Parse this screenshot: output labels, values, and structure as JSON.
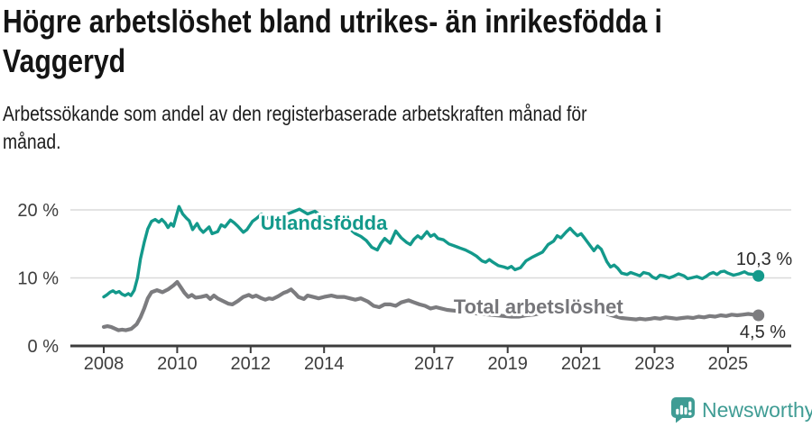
{
  "header": {
    "title": "Högre arbetslöshet bland utrikes- än inrikesfödda i\nVaggeryd",
    "subtitle": "Arbetssökande som andel av den registerbaserade arbetskraften månad för\nmånad."
  },
  "footer": {
    "brand": "Newsworthy"
  },
  "colors": {
    "series_foreign": "#13998B",
    "series_foreign_label": "#13998B",
    "series_total": "#7C7C7F",
    "series_total_label": "#76767A",
    "grid": "#DADADA",
    "axis": "#3C3C3C",
    "tick_text": "#3D3D3D",
    "value_text": "#2B2B2B",
    "brand": "#3F9C94"
  },
  "chart_data": {
    "type": "line",
    "title": "Högre arbetslöshet bland utrikes- än inrikesfödda i Vaggeryd",
    "subtitle": "Arbetssökande som andel av den registerbaserade arbetskraften månad för månad.",
    "xlabel": "",
    "ylabel": "",
    "grid": "horizontal",
    "legend_position": "inline-labels",
    "x_range": [
      2007.1,
      2026.7
    ],
    "ylim": [
      0,
      22
    ],
    "x_axis": {
      "ticks": [
        {
          "value": 2008,
          "label": "2008"
        },
        {
          "value": 2010,
          "label": "2010"
        },
        {
          "value": 2012,
          "label": "2012"
        },
        {
          "value": 2014,
          "label": "2014"
        },
        {
          "value": 2017,
          "label": "2017"
        },
        {
          "value": 2019,
          "label": "2019"
        },
        {
          "value": 2021,
          "label": "2021"
        },
        {
          "value": 2023,
          "label": "2023"
        },
        {
          "value": 2025,
          "label": "2025"
        }
      ]
    },
    "y_axis": {
      "ticks": [
        {
          "value": 0,
          "label": "0 %"
        },
        {
          "value": 10,
          "label": "10 %"
        },
        {
          "value": 20,
          "label": "20 %"
        }
      ]
    },
    "series": [
      {
        "id": "utlandsfodda",
        "name": "Utlandsfödda",
        "color": "#13998B",
        "end_value": 10.3,
        "end_label": "10,3 %",
        "points": [
          [
            2008.0,
            7.2
          ],
          [
            2008.08,
            7.5
          ],
          [
            2008.17,
            7.9
          ],
          [
            2008.25,
            8.1
          ],
          [
            2008.33,
            7.8
          ],
          [
            2008.42,
            8.0
          ],
          [
            2008.5,
            7.6
          ],
          [
            2008.58,
            7.4
          ],
          [
            2008.67,
            7.7
          ],
          [
            2008.74,
            7.4
          ],
          [
            2008.83,
            8.2
          ],
          [
            2008.92,
            10.0
          ],
          [
            2009.0,
            12.8
          ],
          [
            2009.1,
            15.2
          ],
          [
            2009.2,
            17.2
          ],
          [
            2009.3,
            18.3
          ],
          [
            2009.4,
            18.6
          ],
          [
            2009.5,
            18.2
          ],
          [
            2009.58,
            18.6
          ],
          [
            2009.67,
            18.1
          ],
          [
            2009.75,
            17.4
          ],
          [
            2009.83,
            18.0
          ],
          [
            2009.9,
            17.6
          ],
          [
            2009.97,
            19.0
          ],
          [
            2010.05,
            20.5
          ],
          [
            2010.15,
            19.4
          ],
          [
            2010.25,
            18.8
          ],
          [
            2010.33,
            18.4
          ],
          [
            2010.42,
            17.1
          ],
          [
            2010.54,
            18.0
          ],
          [
            2010.62,
            17.2
          ],
          [
            2010.71,
            16.7
          ],
          [
            2010.79,
            17.1
          ],
          [
            2010.87,
            17.5
          ],
          [
            2010.95,
            16.5
          ],
          [
            2011.1,
            16.8
          ],
          [
            2011.2,
            17.8
          ],
          [
            2011.3,
            17.5
          ],
          [
            2011.45,
            18.5
          ],
          [
            2011.55,
            18.1
          ],
          [
            2011.65,
            17.6
          ],
          [
            2011.8,
            16.7
          ],
          [
            2011.9,
            17.1
          ],
          [
            2012.05,
            18.3
          ],
          [
            2012.15,
            18.7
          ],
          [
            2012.3,
            19.4
          ],
          [
            2012.45,
            18.8
          ],
          [
            2012.6,
            19.1
          ],
          [
            2012.75,
            18.7
          ],
          [
            2012.9,
            19.2
          ],
          [
            2013.1,
            19.6
          ],
          [
            2013.33,
            20.1
          ],
          [
            2013.55,
            19.4
          ],
          [
            2013.75,
            19.8
          ],
          [
            2013.95,
            19.0
          ],
          [
            2014.1,
            18.7
          ],
          [
            2014.25,
            18.5
          ],
          [
            2014.4,
            18.2
          ],
          [
            2014.55,
            17.8
          ],
          [
            2014.7,
            17.2
          ],
          [
            2014.85,
            16.5
          ],
          [
            2015.0,
            16.1
          ],
          [
            2015.15,
            15.5
          ],
          [
            2015.3,
            14.5
          ],
          [
            2015.45,
            14.1
          ],
          [
            2015.55,
            15.1
          ],
          [
            2015.65,
            15.8
          ],
          [
            2015.8,
            15.1
          ],
          [
            2015.95,
            16.9
          ],
          [
            2016.1,
            15.9
          ],
          [
            2016.25,
            15.2
          ],
          [
            2016.35,
            14.9
          ],
          [
            2016.45,
            15.7
          ],
          [
            2016.55,
            16.2
          ],
          [
            2016.65,
            15.8
          ],
          [
            2016.8,
            16.8
          ],
          [
            2016.9,
            16.1
          ],
          [
            2017.0,
            16.4
          ],
          [
            2017.1,
            15.8
          ],
          [
            2017.25,
            15.6
          ],
          [
            2017.4,
            15.0
          ],
          [
            2017.55,
            14.7
          ],
          [
            2017.7,
            14.4
          ],
          [
            2017.85,
            14.1
          ],
          [
            2018.0,
            13.7
          ],
          [
            2018.15,
            13.2
          ],
          [
            2018.3,
            12.5
          ],
          [
            2018.4,
            12.3
          ],
          [
            2018.5,
            12.7
          ],
          [
            2018.6,
            12.3
          ],
          [
            2018.75,
            11.8
          ],
          [
            2018.9,
            11.6
          ],
          [
            2019.0,
            11.4
          ],
          [
            2019.1,
            11.7
          ],
          [
            2019.2,
            11.2
          ],
          [
            2019.35,
            11.5
          ],
          [
            2019.5,
            12.5
          ],
          [
            2019.65,
            13.0
          ],
          [
            2019.8,
            13.4
          ],
          [
            2019.95,
            13.8
          ],
          [
            2020.1,
            14.9
          ],
          [
            2020.25,
            15.4
          ],
          [
            2020.35,
            16.2
          ],
          [
            2020.45,
            15.9
          ],
          [
            2020.6,
            16.8
          ],
          [
            2020.7,
            17.3
          ],
          [
            2020.8,
            16.7
          ],
          [
            2020.9,
            16.2
          ],
          [
            2021.0,
            16.5
          ],
          [
            2021.1,
            15.8
          ],
          [
            2021.25,
            14.7
          ],
          [
            2021.35,
            14.0
          ],
          [
            2021.45,
            14.7
          ],
          [
            2021.55,
            14.2
          ],
          [
            2021.7,
            12.4
          ],
          [
            2021.8,
            11.6
          ],
          [
            2021.9,
            11.9
          ],
          [
            2022.0,
            11.4
          ],
          [
            2022.1,
            10.7
          ],
          [
            2022.25,
            10.5
          ],
          [
            2022.35,
            10.8
          ],
          [
            2022.5,
            10.5
          ],
          [
            2022.6,
            10.3
          ],
          [
            2022.7,
            10.8
          ],
          [
            2022.85,
            10.6
          ],
          [
            2022.95,
            10.1
          ],
          [
            2023.05,
            9.9
          ],
          [
            2023.15,
            10.4
          ],
          [
            2023.25,
            10.3
          ],
          [
            2023.4,
            10.0
          ],
          [
            2023.5,
            10.2
          ],
          [
            2023.65,
            10.6
          ],
          [
            2023.8,
            10.3
          ],
          [
            2023.9,
            9.9
          ],
          [
            2024.0,
            10.0
          ],
          [
            2024.15,
            10.2
          ],
          [
            2024.3,
            9.9
          ],
          [
            2024.4,
            10.2
          ],
          [
            2024.5,
            10.6
          ],
          [
            2024.6,
            10.8
          ],
          [
            2024.7,
            10.5
          ],
          [
            2024.8,
            10.9
          ],
          [
            2024.9,
            11.0
          ],
          [
            2025.0,
            10.7
          ],
          [
            2025.15,
            10.4
          ],
          [
            2025.3,
            10.6
          ],
          [
            2025.45,
            10.9
          ],
          [
            2025.55,
            10.6
          ],
          [
            2025.7,
            10.5
          ],
          [
            2025.83,
            10.3
          ]
        ]
      },
      {
        "id": "total-arbetsloshet",
        "name": "Total arbetslöshet",
        "color": "#7C7C7F",
        "end_value": 4.5,
        "end_label": "4,5 %",
        "points": [
          [
            2008.0,
            2.8
          ],
          [
            2008.1,
            2.9
          ],
          [
            2008.2,
            2.8
          ],
          [
            2008.4,
            2.3
          ],
          [
            2008.5,
            2.4
          ],
          [
            2008.6,
            2.3
          ],
          [
            2008.75,
            2.5
          ],
          [
            2008.9,
            3.2
          ],
          [
            2009.0,
            4.2
          ],
          [
            2009.1,
            5.5
          ],
          [
            2009.2,
            7.0
          ],
          [
            2009.3,
            7.9
          ],
          [
            2009.45,
            8.2
          ],
          [
            2009.6,
            7.9
          ],
          [
            2009.75,
            8.3
          ],
          [
            2009.9,
            8.9
          ],
          [
            2010.0,
            9.4
          ],
          [
            2010.1,
            8.6
          ],
          [
            2010.2,
            7.8
          ],
          [
            2010.3,
            7.2
          ],
          [
            2010.4,
            7.5
          ],
          [
            2010.5,
            7.1
          ],
          [
            2010.65,
            7.2
          ],
          [
            2010.8,
            7.4
          ],
          [
            2010.9,
            6.9
          ],
          [
            2011.0,
            7.4
          ],
          [
            2011.1,
            7.0
          ],
          [
            2011.25,
            6.6
          ],
          [
            2011.4,
            6.2
          ],
          [
            2011.5,
            6.1
          ],
          [
            2011.65,
            6.6
          ],
          [
            2011.8,
            7.2
          ],
          [
            2011.95,
            7.5
          ],
          [
            2012.05,
            7.2
          ],
          [
            2012.15,
            7.4
          ],
          [
            2012.3,
            7.0
          ],
          [
            2012.4,
            6.8
          ],
          [
            2012.5,
            7.0
          ],
          [
            2012.6,
            6.9
          ],
          [
            2012.75,
            7.3
          ],
          [
            2012.9,
            7.8
          ],
          [
            2013.0,
            8.0
          ],
          [
            2013.1,
            8.3
          ],
          [
            2013.2,
            7.8
          ],
          [
            2013.3,
            7.2
          ],
          [
            2013.45,
            6.9
          ],
          [
            2013.55,
            7.4
          ],
          [
            2013.7,
            7.2
          ],
          [
            2013.85,
            7.0
          ],
          [
            2014.0,
            7.2
          ],
          [
            2014.2,
            7.4
          ],
          [
            2014.35,
            7.2
          ],
          [
            2014.55,
            7.2
          ],
          [
            2014.7,
            7.0
          ],
          [
            2014.85,
            6.8
          ],
          [
            2015.0,
            7.0
          ],
          [
            2015.2,
            6.5
          ],
          [
            2015.35,
            5.9
          ],
          [
            2015.5,
            5.7
          ],
          [
            2015.65,
            6.1
          ],
          [
            2015.8,
            6.1
          ],
          [
            2015.95,
            5.9
          ],
          [
            2016.1,
            6.4
          ],
          [
            2016.3,
            6.7
          ],
          [
            2016.45,
            6.4
          ],
          [
            2016.6,
            6.1
          ],
          [
            2016.75,
            5.9
          ],
          [
            2016.9,
            5.5
          ],
          [
            2017.05,
            5.7
          ],
          [
            2017.2,
            5.5
          ],
          [
            2017.35,
            5.3
          ],
          [
            2017.5,
            5.2
          ],
          [
            2017.7,
            5.1
          ],
          [
            2017.9,
            5.0
          ],
          [
            2018.1,
            4.8
          ],
          [
            2018.3,
            4.7
          ],
          [
            2018.5,
            4.6
          ],
          [
            2018.7,
            4.5
          ],
          [
            2018.9,
            4.4
          ],
          [
            2019.1,
            4.3
          ],
          [
            2019.3,
            4.3
          ],
          [
            2019.5,
            4.5
          ],
          [
            2019.7,
            4.6
          ],
          [
            2019.9,
            4.8
          ],
          [
            2020.1,
            5.2
          ],
          [
            2020.3,
            5.7
          ],
          [
            2020.5,
            6.0
          ],
          [
            2020.7,
            6.1
          ],
          [
            2020.9,
            6.0
          ],
          [
            2021.1,
            5.7
          ],
          [
            2021.3,
            5.3
          ],
          [
            2021.5,
            5.0
          ],
          [
            2021.7,
            4.7
          ],
          [
            2021.9,
            4.4
          ],
          [
            2022.1,
            4.1
          ],
          [
            2022.3,
            4.0
          ],
          [
            2022.5,
            3.9
          ],
          [
            2022.6,
            4.0
          ],
          [
            2022.75,
            3.9
          ],
          [
            2022.9,
            4.0
          ],
          [
            2023.0,
            4.1
          ],
          [
            2023.15,
            4.0
          ],
          [
            2023.3,
            4.2
          ],
          [
            2023.45,
            4.1
          ],
          [
            2023.6,
            4.0
          ],
          [
            2023.75,
            4.1
          ],
          [
            2023.9,
            4.2
          ],
          [
            2024.05,
            4.1
          ],
          [
            2024.2,
            4.3
          ],
          [
            2024.35,
            4.2
          ],
          [
            2024.5,
            4.4
          ],
          [
            2024.65,
            4.3
          ],
          [
            2024.8,
            4.5
          ],
          [
            2024.95,
            4.4
          ],
          [
            2025.1,
            4.6
          ],
          [
            2025.25,
            4.5
          ],
          [
            2025.4,
            4.6
          ],
          [
            2025.55,
            4.7
          ],
          [
            2025.7,
            4.6
          ],
          [
            2025.83,
            4.5
          ]
        ]
      }
    ],
    "annotations": [
      {
        "id": "series-label-utlandsfodda",
        "role": "series-label",
        "series": 0,
        "text": "Utlandsfödda",
        "year": 2012.27,
        "value": 17.1
      },
      {
        "id": "series-label-total-arbetsloshet",
        "role": "series-label",
        "series": 1,
        "text": "Total arbetslöshet",
        "year": 2017.53,
        "value": 4.75
      },
      {
        "id": "end-value-label-utlandsfodda",
        "role": "value-label",
        "text": "10,3 %",
        "year": 2025.22,
        "value": 11.9
      },
      {
        "id": "end-value-label-total-arbetsloshet",
        "role": "value-label",
        "text": "4,5 %",
        "year": 2025.32,
        "value": 1.2
      }
    ]
  }
}
